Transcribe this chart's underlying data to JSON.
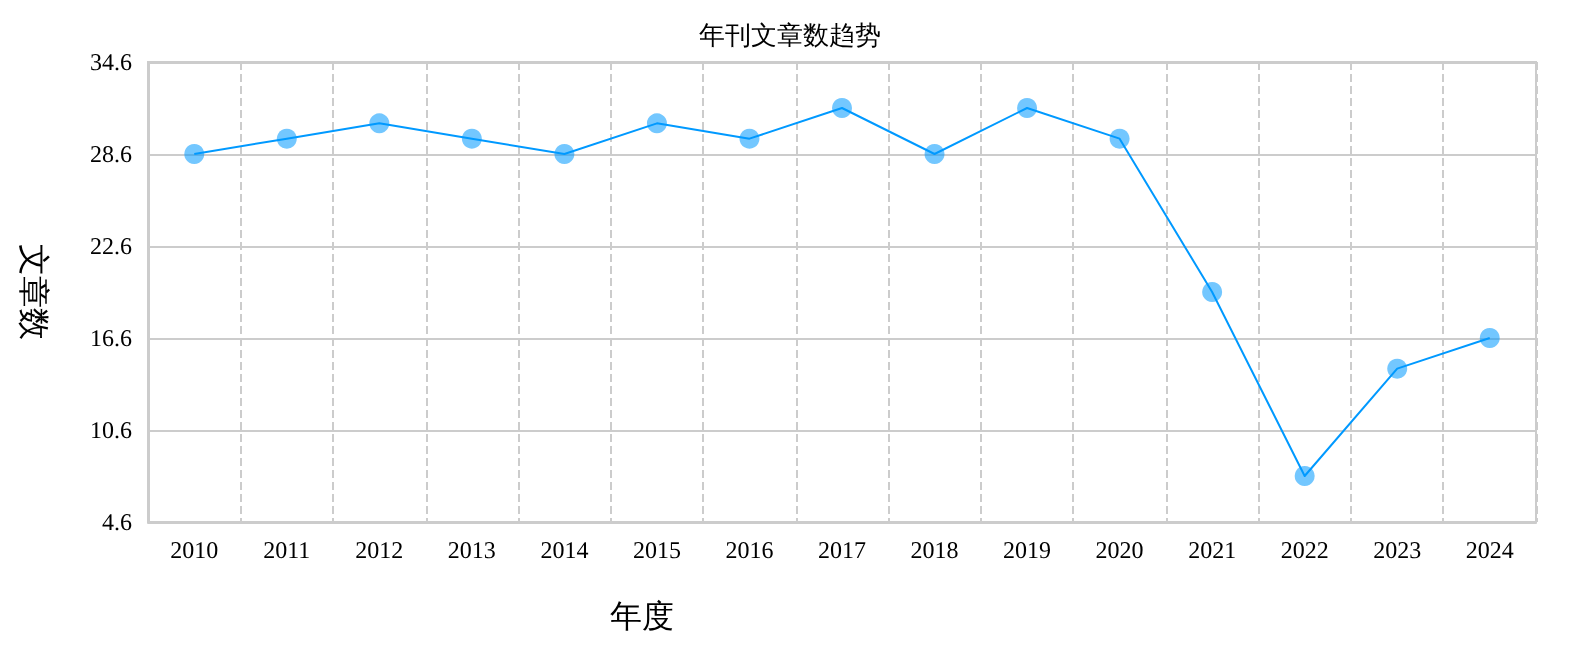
{
  "chart_data": {
    "type": "line",
    "title": "年刊文章数趋势",
    "xlabel": "年度",
    "ylabel": "文章数",
    "categories": [
      "2010",
      "2011",
      "2012",
      "2013",
      "2014",
      "2015",
      "2016",
      "2017",
      "2018",
      "2019",
      "2020",
      "2021",
      "2022",
      "2023",
      "2024"
    ],
    "series": [
      {
        "color": "#0099ff",
        "values": [
          28.6,
          29.6,
          30.6,
          29.6,
          28.6,
          30.6,
          29.6,
          31.6,
          28.6,
          31.6,
          29.6,
          19.6,
          7.6,
          14.6,
          16.6
        ]
      }
    ],
    "ylim": [
      4.6,
      34.6
    ],
    "yticks": [
      4.6,
      10.6,
      16.6,
      22.6,
      28.6,
      34.6
    ],
    "grid": true,
    "marker": "circle"
  }
}
